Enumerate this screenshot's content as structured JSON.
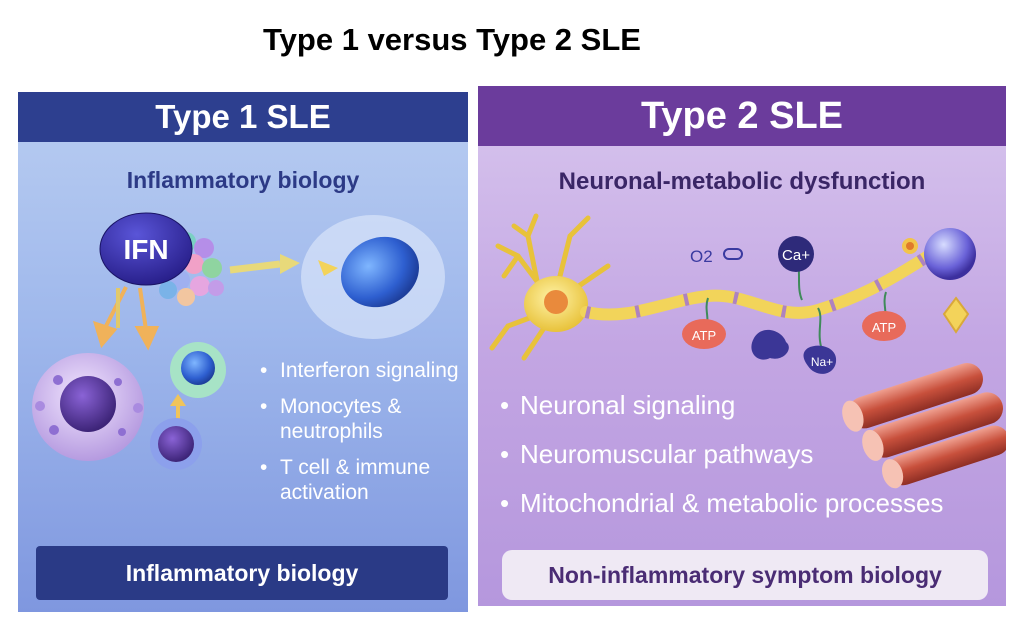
{
  "title": "Type 1 versus Type 2 SLE",
  "type1": {
    "header": "Type 1 SLE",
    "subtitle": "Inflammatory biology",
    "ifn_label": "IFN",
    "bullets": [
      "Interferon signaling",
      "Monocytes & neutrophils",
      "T cell & immune activation"
    ],
    "footer": "Inflammatory biology"
  },
  "type2": {
    "header": "Type 2 SLE",
    "subtitle": "Neuronal-metabolic dysfunction",
    "labels": {
      "o2": "O2",
      "ca": "Ca+",
      "atp_left": "ATP",
      "atp_right": "ATP",
      "na": "Na+"
    },
    "bullets": [
      "Neuronal signaling",
      "Neuromuscular pathways",
      "Mitochondrial & metabolic processes"
    ],
    "footer": "Non-inflammatory symptom biology"
  },
  "colors": {
    "type1_header": "#2d3f8f",
    "type2_header": "#6b3c9c",
    "type1_footer": "#2a3a86",
    "type2_footer_text": "#4a2c74"
  }
}
